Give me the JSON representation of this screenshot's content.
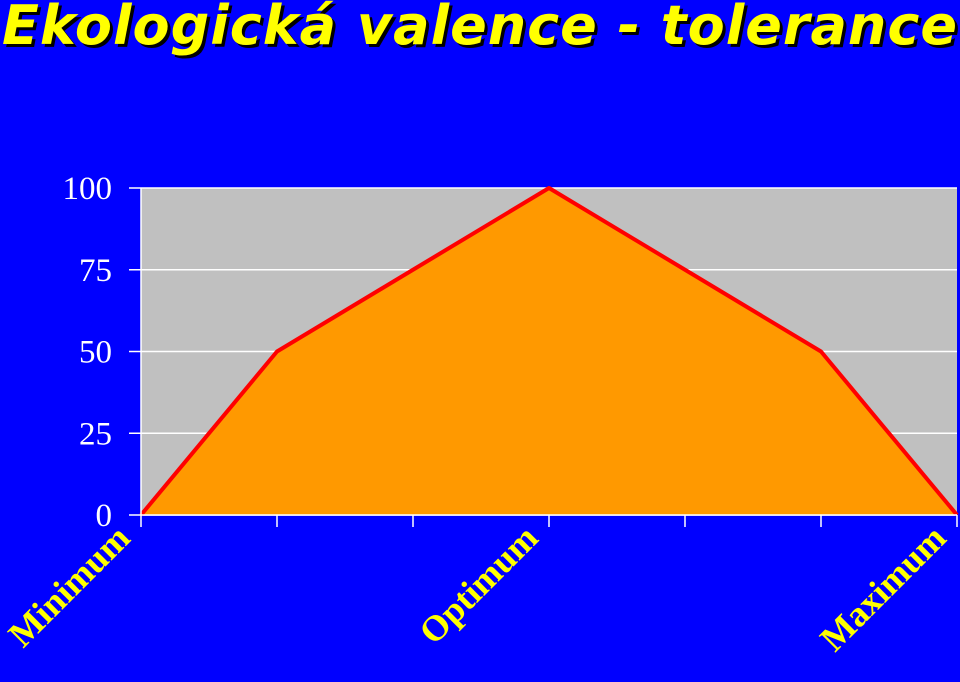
{
  "chart_data": {
    "type": "area",
    "title": "Ekologická valence - tolerance",
    "x": [
      0,
      1,
      2,
      3,
      4,
      5,
      6
    ],
    "values": [
      0,
      50,
      75,
      100,
      75,
      50,
      0
    ],
    "ylim": [
      0,
      100
    ],
    "yticks": [
      0,
      25,
      50,
      75,
      100
    ],
    "xtick_labels": [
      {
        "x": 0,
        "label": "Minimum"
      },
      {
        "x": 3,
        "label": "Optimum"
      },
      {
        "x": 6,
        "label": "Maximum"
      }
    ],
    "grid": true,
    "colors": {
      "background": "#0000ff",
      "plot_area": "#c0c0c0",
      "fill": "#ff9900",
      "line": "#ff0000",
      "title": "#ffff00",
      "y_ticks": "#ffffff",
      "x_ticks": "#ffff00",
      "grid": "#ffffff"
    }
  }
}
